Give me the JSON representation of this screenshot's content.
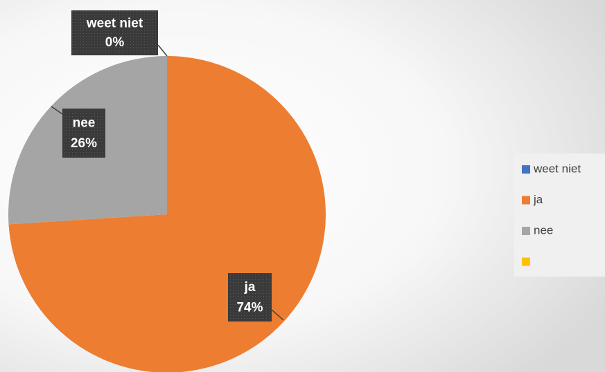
{
  "chart_data": {
    "type": "pie",
    "categories": [
      "weet niet",
      "ja",
      "nee",
      null
    ],
    "values": [
      0,
      74,
      26,
      0
    ],
    "value_labels": [
      "0%",
      "74%",
      "26%",
      null
    ],
    "colors": [
      "#4472c4",
      "#ed7d31",
      "#a5a5a5",
      "#ffc000"
    ],
    "legend": "right"
  }
}
